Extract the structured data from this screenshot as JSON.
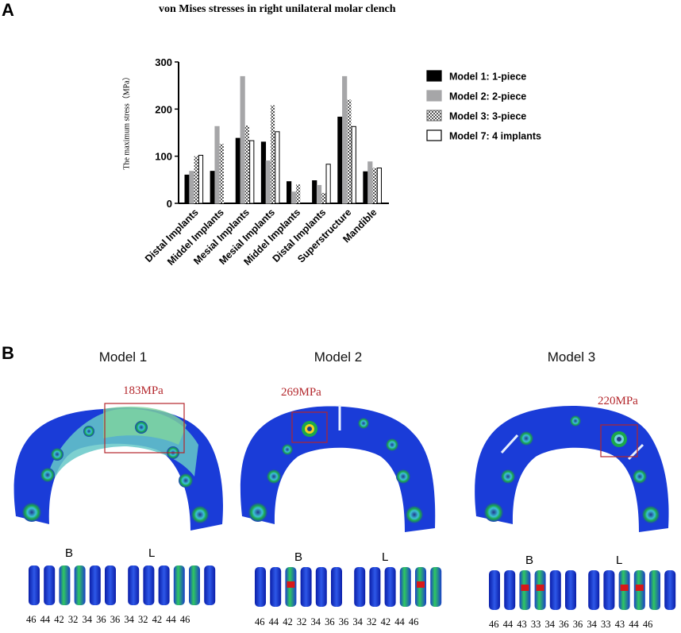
{
  "panel_a_label": "A",
  "panel_b_label": "B",
  "chart_data": {
    "type": "bar",
    "title": "von Mises stresses in right unilateral molar clench",
    "ylabel": "The maximum stress（MPa）",
    "xlabel": "",
    "ylim": [
      0,
      300
    ],
    "yticks": [
      0,
      100,
      200,
      300
    ],
    "categories": [
      "Distal Implants",
      "Middel Implants",
      "Mesial Implants",
      "Mesial Implants",
      "Middel Implants",
      "Distal Implants",
      "Superstructure",
      "Mandible"
    ],
    "series": [
      {
        "name": "Model 1: 1-piece",
        "style": "solid-black",
        "values": [
          60,
          68,
          138,
          130,
          46,
          48,
          183,
          67
        ]
      },
      {
        "name": "Model 2: 2-piece",
        "style": "solid-gray",
        "values": [
          68,
          163,
          269,
          90,
          24,
          38,
          269,
          88
        ]
      },
      {
        "name": "Model 3: 3-piece",
        "style": "checker",
        "values": [
          100,
          126,
          165,
          208,
          40,
          22,
          220,
          75
        ]
      },
      {
        "name": "Model 7: 4 implants",
        "style": "outline",
        "values": [
          102,
          0,
          133,
          152,
          0,
          83,
          163,
          75
        ]
      }
    ],
    "legend_position": "right",
    "colors": {
      "model1": "#000000",
      "model2": "#a6a6a8",
      "model3": "#7a7a7a",
      "model7": "#ffffff"
    }
  },
  "models": [
    {
      "title": "Model 1",
      "stress": "183MPa",
      "b": "B",
      "l": "L",
      "teeth": "46 44 42 32 34 36   36 34 32 42 44 46"
    },
    {
      "title": "Model 2",
      "stress": "269MPa",
      "b": "B",
      "l": "L",
      "teeth": "46 44 42 32 34 36   36 34 32 42 44 46"
    },
    {
      "title": "Model 3",
      "stress": "220MPa",
      "b": "B",
      "l": "L",
      "teeth": "46 44 43 33 34 36   36 34 33 43 44 46"
    }
  ]
}
